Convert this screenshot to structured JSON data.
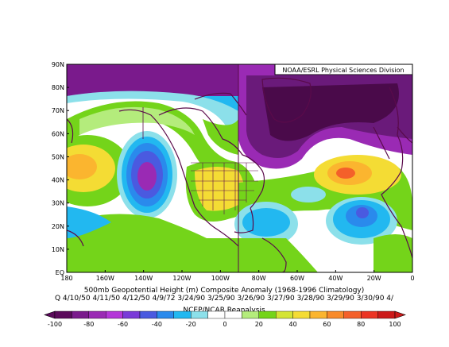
{
  "credit": "NOAA/ESRL Physical Sciences Division",
  "title": "500mb Geopotential Height (m) Composite Anomaly (1968-1996 Climatology)",
  "dates_line": "Q 4/10/50 4/11/50 4/12/50 4/9/72 3/24/90 3/25/90 3/26/90 3/27/90 3/28/90 3/29/90 3/30/90 4/",
  "source": "NCEP/NCAR Reanalysis",
  "lat_labels": [
    "90N",
    "80N",
    "70N",
    "60N",
    "50N",
    "40N",
    "30N",
    "20N",
    "10N",
    "EQ"
  ],
  "lon_labels": [
    "180",
    "160W",
    "140W",
    "120W",
    "100W",
    "80W",
    "60W",
    "40W",
    "20W",
    "0"
  ],
  "colorbar": {
    "tick_labels": [
      "-100",
      "-80",
      "-60",
      "-40",
      "-20",
      "0",
      "20",
      "40",
      "60",
      "80",
      "100"
    ],
    "colors": [
      "#5a0a5a",
      "#7a1a8c",
      "#9a2ab4",
      "#b436d8",
      "#7a3ad8",
      "#4a5ae0",
      "#2a8aec",
      "#22b8f0",
      "#8ce0ea",
      "#ffffff",
      "#ffffff",
      "#b4ec7c",
      "#74d41a",
      "#d4e434",
      "#f4dc34",
      "#fbb52f",
      "#f88a2a",
      "#f4602a",
      "#ec3424",
      "#cc1a1a"
    ]
  },
  "field_colors": {
    "pos20": "#74d41a",
    "pos40": "#f4dc34",
    "pos60": "#fbb52f",
    "pos80": "#f4602a",
    "neg20": "#8ce0ea",
    "neg40": "#22b8f0",
    "neg60": "#2a8aec",
    "neg80": "#4a5ae0",
    "neg100": "#9a2ab4",
    "neg120": "#6a1a7a",
    "neg140": "#4a0a4a",
    "coast": "#5a0a4a"
  }
}
